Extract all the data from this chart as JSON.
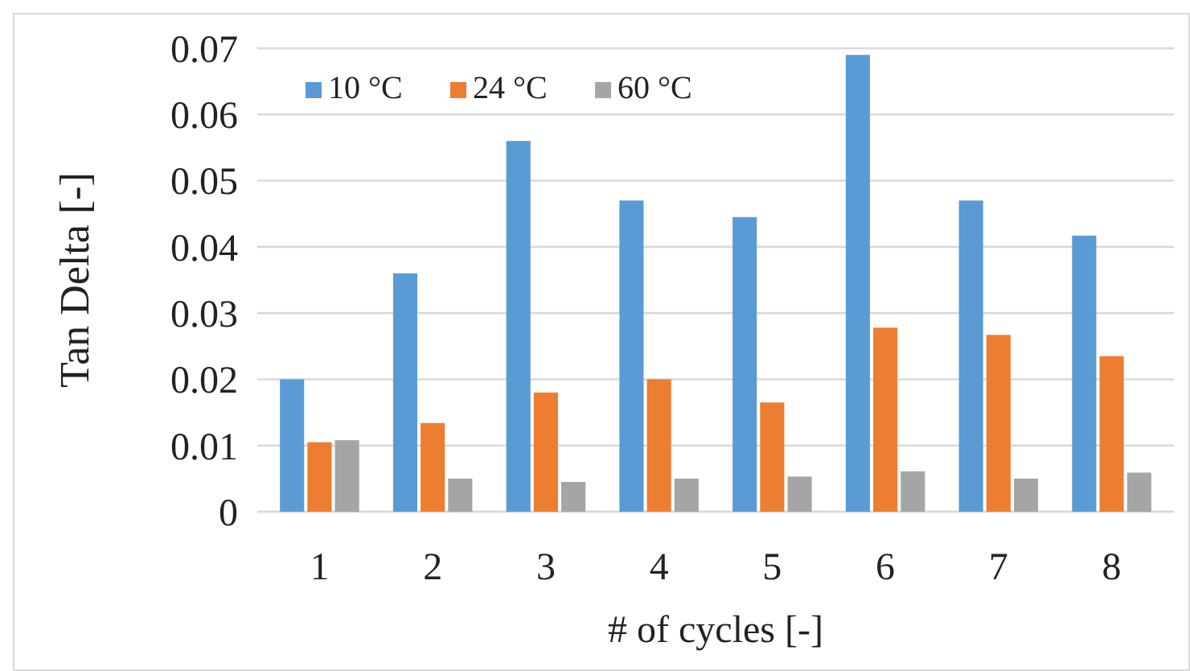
{
  "chart_data": {
    "type": "bar",
    "xlabel": "# of cycles [-]",
    "ylabel": "Tan Delta [-]",
    "categories": [
      "1",
      "2",
      "3",
      "4",
      "5",
      "6",
      "7",
      "8"
    ],
    "series": [
      {
        "name": "10 °C",
        "color": "#5b9bd5",
        "values": [
          0.02,
          0.036,
          0.056,
          0.047,
          0.0445,
          0.069,
          0.047,
          0.0417
        ]
      },
      {
        "name": "24 °C",
        "color": "#ed7d31",
        "values": [
          0.0105,
          0.0134,
          0.018,
          0.02,
          0.0165,
          0.0278,
          0.0267,
          0.0235
        ]
      },
      {
        "name": "60 °C",
        "color": "#a5a5a5",
        "values": [
          0.0108,
          0.005,
          0.0045,
          0.005,
          0.0053,
          0.0061,
          0.005,
          0.0059
        ]
      }
    ],
    "ylim": [
      0,
      0.07
    ],
    "yticks": [
      0,
      0.01,
      0.02,
      0.03,
      0.04,
      0.05,
      0.06,
      0.07
    ],
    "grid": "y",
    "legend": "top left"
  }
}
